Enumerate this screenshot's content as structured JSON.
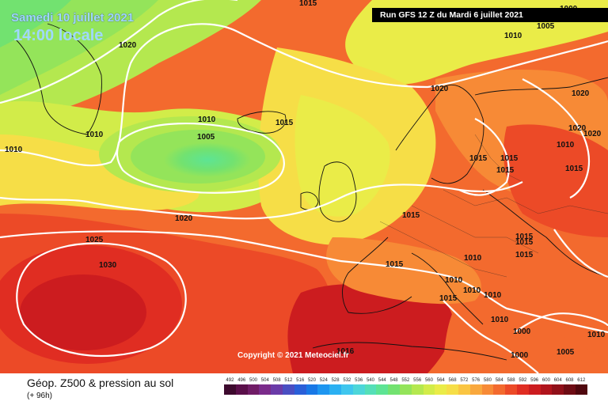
{
  "header": {
    "date": "Samedi 10 juillet 2021",
    "time": "14:00 locale",
    "run": "Run GFS 12 Z du Mardi 6 juillet 2021"
  },
  "copyright": "Copyright © 2021 Meteociel.fr",
  "footer": {
    "title": "Géop. Z500 & pression au sol",
    "subtitle": "(+ 96h)"
  },
  "scale": {
    "labels": [
      "492",
      "496",
      "500",
      "504",
      "508",
      "512",
      "516",
      "520",
      "524",
      "528",
      "532",
      "536",
      "540",
      "544",
      "548",
      "552",
      "556",
      "560",
      "564",
      "568",
      "572",
      "576",
      "580",
      "584",
      "588",
      "592",
      "596",
      "600",
      "604",
      "608",
      "612"
    ],
    "colors": [
      "#3d0a2e",
      "#5a0f4a",
      "#701c66",
      "#7a2b8a",
      "#6a3ba8",
      "#4a4ec2",
      "#2a5fd8",
      "#1878e6",
      "#1e96f0",
      "#2bb0f2",
      "#3fc6ee",
      "#4dd6d9",
      "#55dfb8",
      "#5de494",
      "#72e270",
      "#94e45a",
      "#b4e84f",
      "#d2ec49",
      "#eaec48",
      "#f6de47",
      "#fac542",
      "#f9a83d",
      "#f78a36",
      "#f36a2e",
      "#ec4a27",
      "#e02d22",
      "#cc1c1f",
      "#b0141c",
      "#901019",
      "#6e0c14",
      "#4f070e"
    ]
  },
  "isobars": [
    {
      "label": "1015"
    },
    {
      "label": "1000"
    },
    {
      "label": "1005"
    },
    {
      "label": "1010"
    },
    {
      "label": "1020"
    },
    {
      "label": "1010"
    },
    {
      "label": "1015"
    },
    {
      "label": "1005"
    },
    {
      "label": "1010"
    },
    {
      "label": "1010"
    },
    {
      "label": "1020"
    },
    {
      "label": "1015"
    },
    {
      "label": "1025"
    },
    {
      "label": "1030"
    },
    {
      "label": "1015"
    },
    {
      "label": "1020"
    },
    {
      "label": "1020"
    },
    {
      "label": "1020"
    },
    {
      "label": "1020"
    },
    {
      "label": "1010"
    },
    {
      "label": "1015"
    },
    {
      "label": "1015"
    },
    {
      "label": "1015"
    },
    {
      "label": "1015"
    },
    {
      "label": "1015"
    },
    {
      "label": "1015"
    },
    {
      "label": "1010"
    },
    {
      "label": "1010"
    },
    {
      "label": "1015"
    },
    {
      "label": "1010"
    },
    {
      "label": "1010"
    },
    {
      "label": "1010"
    },
    {
      "label": "1016"
    },
    {
      "label": "1000"
    },
    {
      "label": "1005"
    },
    {
      "label": "1000"
    },
    {
      "label": "1010"
    },
    {
      "label": "1015"
    }
  ]
}
